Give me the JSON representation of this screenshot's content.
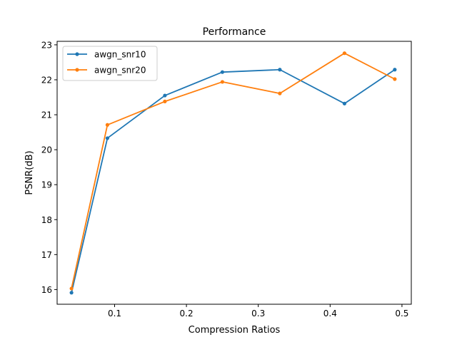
{
  "chart_data": {
    "type": "line",
    "title": "Performance",
    "xlabel": "Compression Ratios",
    "ylabel": "PSNR(dB)",
    "xlim": [
      0.02,
      0.513
    ],
    "ylim": [
      15.58,
      23.1
    ],
    "xticks": [
      0.1,
      0.2,
      0.3,
      0.4,
      0.5
    ],
    "xtick_labels": [
      "0.1",
      "0.2",
      "0.3",
      "0.4",
      "0.5"
    ],
    "yticks": [
      16,
      17,
      18,
      19,
      20,
      21,
      22,
      23
    ],
    "ytick_labels": [
      "16",
      "17",
      "18",
      "19",
      "20",
      "21",
      "22",
      "23"
    ],
    "grid": false,
    "legend_position": "top-left",
    "x": [
      0.04,
      0.09,
      0.17,
      0.25,
      0.33,
      0.42,
      0.49
    ],
    "series": [
      {
        "name": "awgn_snr10",
        "color": "#1f77b4",
        "values": [
          15.91,
          20.33,
          21.55,
          22.22,
          22.29,
          21.32,
          22.29
        ]
      },
      {
        "name": "awgn_snr20",
        "color": "#ff7f0e",
        "values": [
          16.03,
          20.71,
          21.38,
          21.94,
          21.61,
          22.76,
          22.02
        ]
      }
    ]
  }
}
